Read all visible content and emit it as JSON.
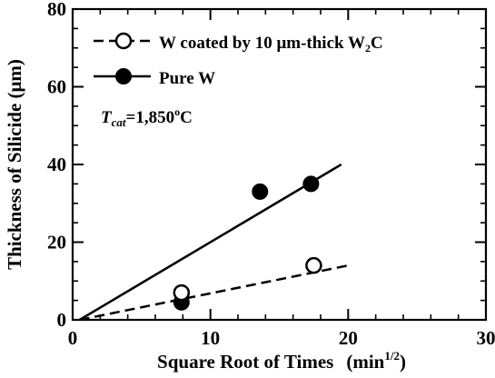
{
  "chart_data": {
    "type": "scatter",
    "xlabel": "Square Root of Times",
    "xlabel_unit": "(min",
    "xlabel_unit_sup": "1/2",
    "xlabel_unit_close": ")",
    "ylabel": "Thickness of Silicide (μm)",
    "xlim": [
      0,
      30
    ],
    "ylim": [
      0,
      80
    ],
    "xticks": [
      0,
      10,
      20,
      30
    ],
    "yticks": [
      0,
      20,
      40,
      60,
      80
    ],
    "x_minor_step": 2,
    "y_minor_step": 5,
    "grid": false,
    "legend_position": "top-left",
    "annotation": {
      "t_label": "T",
      "t_sub": "cat",
      "value_text": "=1,850",
      "degree_sup": "o",
      "unit_text": "C"
    },
    "series": [
      {
        "name": "W coated by 10 μm-thick W",
        "name_sub": "2",
        "name_suffix": "C",
        "marker": "open-circle",
        "line_style": "dashed",
        "color": "#000000",
        "points": [
          {
            "x": 7.9,
            "y": 7.0
          },
          {
            "x": 17.5,
            "y": 14.0
          }
        ],
        "fit_line": {
          "x": [
            0.5,
            20.0
          ],
          "y": [
            0.0,
            14.0
          ]
        }
      },
      {
        "name": "Pure W",
        "marker": "filled-circle",
        "line_style": "solid",
        "color": "#000000",
        "points": [
          {
            "x": 7.9,
            "y": 4.5
          },
          {
            "x": 13.6,
            "y": 33.0
          },
          {
            "x": 17.3,
            "y": 35.0
          }
        ],
        "fit_line": {
          "x": [
            0.5,
            19.5
          ],
          "y": [
            0.0,
            40.0
          ]
        }
      }
    ]
  }
}
